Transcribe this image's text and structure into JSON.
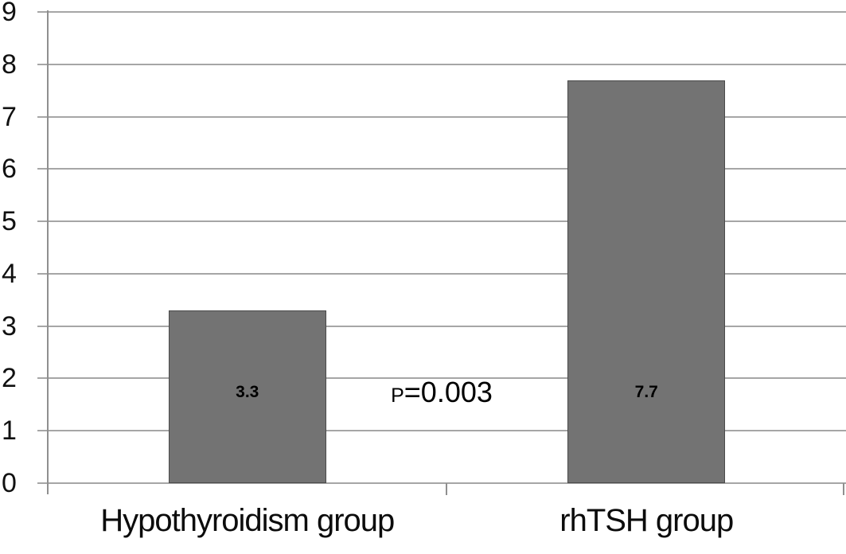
{
  "chart_data": {
    "type": "bar",
    "title": "",
    "xlabel": "",
    "ylabel": "",
    "categories": [
      "Hypothyroidism group",
      "rhTSH group"
    ],
    "values": [
      3.3,
      7.7
    ],
    "bar_labels": [
      "3.3",
      "7.7"
    ],
    "yticks": [
      0,
      1,
      2,
      3,
      4,
      5,
      6,
      7,
      8,
      9
    ],
    "ylim": [
      0,
      9
    ],
    "grid": "horizontal",
    "legend_position": "none",
    "annotation": {
      "text": "P=0.003",
      "prefix": "P",
      "rest": "=0.003"
    },
    "colors": {
      "bar_fill": "#737373",
      "bar_border": "#4a4a4a",
      "gridline": "#a6a6a6",
      "axis": "#8f8f8f",
      "text": "#111111",
      "background": "#ffffff"
    }
  }
}
